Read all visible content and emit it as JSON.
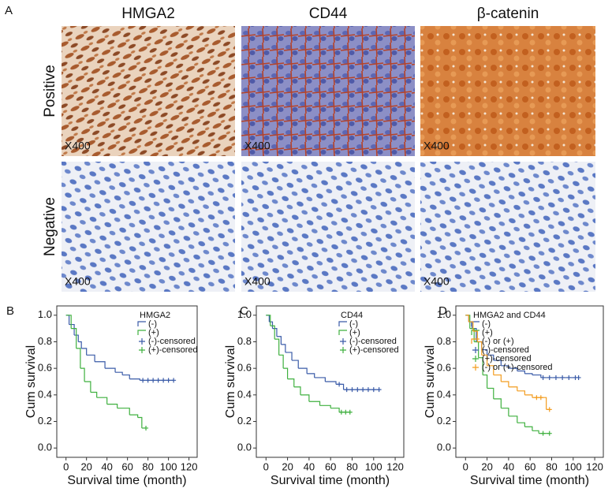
{
  "panel_labels": [
    "A",
    "B",
    "C",
    "D"
  ],
  "image_grid": {
    "columns": [
      "HMGA2",
      "CD44",
      "β-catenin"
    ],
    "rows": [
      "Positive",
      "Negative"
    ],
    "magnification": "X400"
  },
  "chart_data": [
    {
      "type": "line",
      "title": "HMGA2",
      "x_label": "Survival time (month)",
      "y_label": "Cum survival",
      "xlim": [
        -9,
        128
      ],
      "xticks": [
        0,
        20,
        40,
        60,
        80,
        100,
        120
      ],
      "ylim": [
        -0.07,
        1.07
      ],
      "yticks": [
        {
          "value": 0,
          "label": "0.0"
        },
        0.2,
        0.4,
        0.6,
        0.8,
        {
          "value": 1,
          "label": "1.0"
        }
      ],
      "series": [
        {
          "name": "(-)",
          "color": "#3a5ba8",
          "mode": "step",
          "x": [
            0,
            3,
            8,
            12,
            15,
            20,
            28,
            38,
            48,
            55,
            62,
            72,
            105
          ],
          "values": [
            1,
            0.93,
            0.85,
            0.8,
            0.75,
            0.7,
            0.65,
            0.6,
            0.57,
            0.55,
            0.52,
            0.51,
            0.51
          ]
        },
        {
          "name": "(+)",
          "color": "#3fb03f",
          "mode": "step",
          "x": [
            0,
            5,
            10,
            14,
            18,
            24,
            30,
            40,
            50,
            62,
            70,
            74,
            78
          ],
          "values": [
            1,
            0.9,
            0.75,
            0.6,
            0.5,
            0.42,
            0.38,
            0.33,
            0.3,
            0.25,
            0.23,
            0.15,
            0.15
          ]
        },
        {
          "name": "(-)-censored",
          "color": "#3a5ba8",
          "mode": "censored",
          "x": [
            75,
            80,
            85,
            90,
            95,
            100,
            105
          ],
          "values": [
            0.51,
            0.51,
            0.51,
            0.51,
            0.51,
            0.51,
            0.51
          ]
        },
        {
          "name": "(+)-censored",
          "color": "#3fb03f",
          "mode": "censored",
          "x": [
            78
          ],
          "values": [
            0.15
          ]
        }
      ]
    },
    {
      "type": "line",
      "title": "CD44",
      "x_label": "Survival time (month)",
      "y_label": "Cum survival",
      "xlim": [
        -9,
        128
      ],
      "xticks": [
        0,
        20,
        40,
        60,
        80,
        100,
        120
      ],
      "ylim": [
        -0.07,
        1.07
      ],
      "yticks": [
        {
          "value": 0,
          "label": "0.0"
        },
        0.2,
        0.4,
        0.6,
        0.8,
        {
          "value": 1,
          "label": "1.0"
        }
      ],
      "series": [
        {
          "name": "(-)",
          "color": "#3a5ba8",
          "mode": "step",
          "x": [
            0,
            3,
            6,
            10,
            14,
            18,
            24,
            30,
            38,
            45,
            55,
            65,
            72,
            105
          ],
          "values": [
            1,
            0.95,
            0.9,
            0.84,
            0.78,
            0.72,
            0.66,
            0.6,
            0.56,
            0.53,
            0.5,
            0.48,
            0.44,
            0.44
          ]
        },
        {
          "name": "(+)",
          "color": "#3fb03f",
          "mode": "step",
          "x": [
            0,
            4,
            8,
            12,
            16,
            20,
            26,
            32,
            40,
            50,
            60,
            68,
            78
          ],
          "values": [
            1,
            0.92,
            0.82,
            0.7,
            0.6,
            0.52,
            0.46,
            0.4,
            0.35,
            0.32,
            0.3,
            0.27,
            0.27
          ]
        },
        {
          "name": "(-)-censored",
          "color": "#3a5ba8",
          "mode": "censored",
          "x": [
            68,
            75,
            80,
            85,
            90,
            95,
            100,
            105
          ],
          "values": [
            0.48,
            0.44,
            0.44,
            0.44,
            0.44,
            0.44,
            0.44,
            0.44
          ]
        },
        {
          "name": "(+)-censored",
          "color": "#3fb03f",
          "mode": "censored",
          "x": [
            70,
            74,
            78
          ],
          "values": [
            0.27,
            0.27,
            0.27
          ]
        }
      ]
    },
    {
      "type": "line",
      "title": "HMGA2 and CD44",
      "x_label": "Survival time (month)",
      "y_label": "Cum survival",
      "xlim": [
        -9,
        128
      ],
      "xticks": [
        0,
        20,
        40,
        60,
        80,
        100,
        120
      ],
      "ylim": [
        -0.07,
        1.07
      ],
      "yticks": [
        {
          "value": 0,
          "label": "0.0"
        },
        0.2,
        0.4,
        0.6,
        0.8,
        {
          "value": 1,
          "label": "1.0"
        }
      ],
      "series": [
        {
          "name": "(-)",
          "color": "#3a5ba8",
          "mode": "step",
          "x": [
            0,
            3,
            6,
            10,
            15,
            20,
            26,
            33,
            40,
            48,
            55,
            62,
            70,
            105
          ],
          "values": [
            1,
            0.95,
            0.9,
            0.8,
            0.74,
            0.7,
            0.66,
            0.62,
            0.6,
            0.58,
            0.56,
            0.55,
            0.53,
            0.53
          ]
        },
        {
          "name": "(+)",
          "color": "#3fb03f",
          "mode": "step",
          "x": [
            0,
            4,
            8,
            12,
            16,
            20,
            26,
            33,
            40,
            48,
            55,
            62,
            68,
            78
          ],
          "values": [
            1,
            0.9,
            0.8,
            0.68,
            0.55,
            0.45,
            0.37,
            0.3,
            0.24,
            0.19,
            0.16,
            0.13,
            0.11,
            0.11
          ]
        },
        {
          "name": "(-) or (+)",
          "color": "#f39c1e",
          "mode": "step",
          "x": [
            0,
            3,
            7,
            11,
            15,
            20,
            26,
            33,
            40,
            48,
            55,
            62,
            72,
            75,
            78
          ],
          "values": [
            1,
            0.95,
            0.88,
            0.8,
            0.7,
            0.62,
            0.55,
            0.5,
            0.46,
            0.43,
            0.4,
            0.38,
            0.38,
            0.29,
            0.29
          ]
        },
        {
          "name": "(-)-censored",
          "color": "#3a5ba8",
          "mode": "censored",
          "x": [
            72,
            78,
            84,
            90,
            96,
            102,
            105
          ],
          "values": [
            0.53,
            0.53,
            0.53,
            0.53,
            0.53,
            0.53,
            0.53
          ]
        },
        {
          "name": "(+)-censored",
          "color": "#3fb03f",
          "mode": "censored",
          "x": [
            72,
            78
          ],
          "values": [
            0.11,
            0.11
          ]
        },
        {
          "name": "(-) or (+)-censored",
          "color": "#f39c1e",
          "mode": "censored",
          "x": [
            66,
            70,
            78
          ],
          "values": [
            0.38,
            0.38,
            0.29
          ]
        }
      ]
    }
  ]
}
